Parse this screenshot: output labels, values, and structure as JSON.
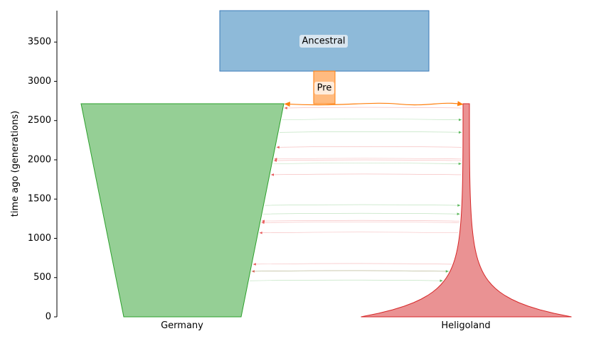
{
  "chart_data": {
    "type": "demographic-model",
    "ylabel": "time ago (generations)",
    "yticks": [
      0,
      500,
      1000,
      1500,
      2000,
      2500,
      3000,
      3500
    ],
    "ylim": [
      0,
      3900
    ],
    "populations": [
      {
        "id": "ancestral",
        "name": "Ancestral",
        "color": "#8ebad9",
        "edge": "#3a7ab8",
        "start_time": 3900,
        "end_time": 3130
      },
      {
        "id": "pre",
        "name": "Pre",
        "color": "#ffbb80",
        "edge": "#ff7f0e",
        "start_time": 3130,
        "end_time": 2715
      },
      {
        "id": "germany",
        "name": "Germany",
        "color": "#95cf95",
        "edge": "#2ca02c",
        "start_time": 2715,
        "end_time": 0,
        "shape": "linear-decline"
      },
      {
        "id": "heligoland",
        "name": "Heligoland",
        "color": "#ea9293",
        "edge": "#d62728",
        "start_time": 2715,
        "end_time": 0,
        "shape": "exponential-growth"
      }
    ],
    "split_time": 2715,
    "migration_pulses": [
      {
        "time": 2660,
        "from": "heligoland",
        "to": "germany"
      },
      {
        "time": 2510,
        "from": "germany",
        "to": "heligoland"
      },
      {
        "time": 2350,
        "from": "germany",
        "to": "heligoland"
      },
      {
        "time": 2160,
        "from": "heligoland",
        "to": "germany"
      },
      {
        "time": 2010,
        "from": "heligoland",
        "to": "germany"
      },
      {
        "time": 1990,
        "from": "heligoland",
        "to": "germany"
      },
      {
        "time": 1950,
        "from": "germany",
        "to": "heligoland"
      },
      {
        "time": 1810,
        "from": "heligoland",
        "to": "germany"
      },
      {
        "time": 1420,
        "from": "germany",
        "to": "heligoland"
      },
      {
        "time": 1310,
        "from": "germany",
        "to": "heligoland"
      },
      {
        "time": 1220,
        "from": "heligoland",
        "to": "germany"
      },
      {
        "time": 1200,
        "from": "heligoland",
        "to": "germany"
      },
      {
        "time": 1070,
        "from": "heligoland",
        "to": "germany"
      },
      {
        "time": 670,
        "from": "heligoland",
        "to": "germany"
      },
      {
        "time": 580,
        "from": "heligoland",
        "to": "germany"
      },
      {
        "time": 580,
        "from": "germany",
        "to": "heligoland"
      },
      {
        "time": 460,
        "from": "germany",
        "to": "heligoland"
      }
    ],
    "migration_colors": {
      "to_germany": "#e8595a",
      "to_heligoland": "#5cb85c"
    },
    "symmetric_migration_color": "#ff7f0e"
  }
}
